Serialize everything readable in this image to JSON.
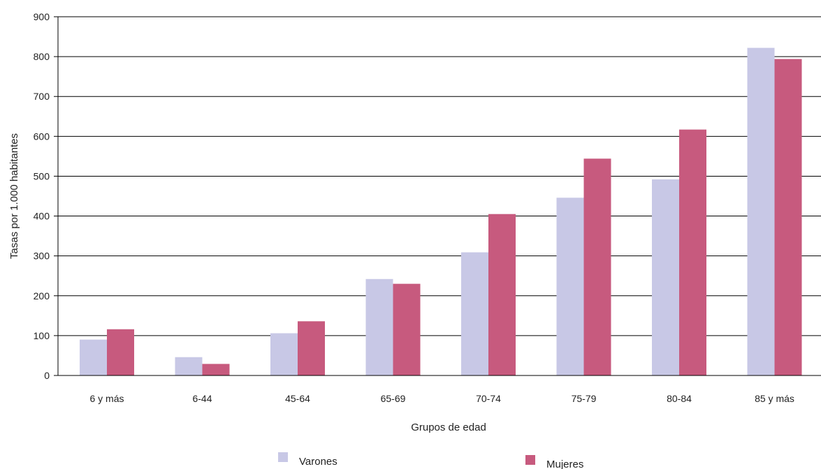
{
  "chart_data": {
    "type": "bar",
    "title": "",
    "xlabel": "Grupos de edad",
    "ylabel": "Tasas por 1.000 habitantes",
    "ylim": [
      0,
      900
    ],
    "yticks": [
      0,
      100,
      200,
      300,
      400,
      500,
      600,
      700,
      800,
      900
    ],
    "grid": true,
    "legend_position": "bottom",
    "categories": [
      "6 y más",
      "6-44",
      "45-64",
      "65-69",
      "70-74",
      "75-79",
      "80-84",
      "85 y más"
    ],
    "series": [
      {
        "name": "Varones",
        "color": "#c8c8e6",
        "values": [
          90,
          46,
          106,
          242,
          309,
          446,
          492,
          822
        ]
      },
      {
        "name": "Mujeres",
        "color": "#c75a7e",
        "values": [
          116,
          29,
          136,
          230,
          405,
          544,
          617,
          794
        ]
      }
    ]
  }
}
